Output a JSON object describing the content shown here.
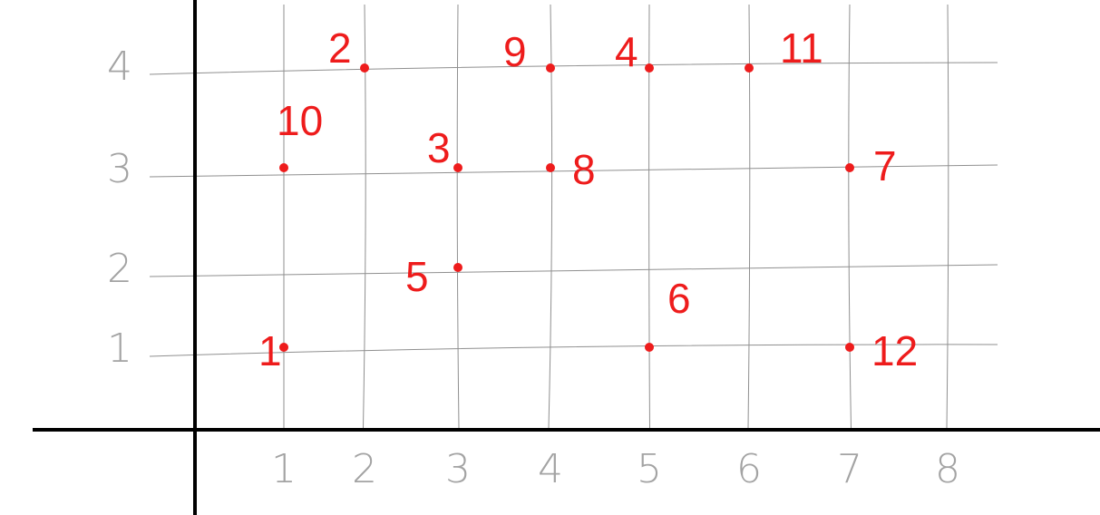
{
  "chart_data": {
    "type": "scatter",
    "x_ticks": [
      "1",
      "2",
      "3",
      "4",
      "5",
      "6",
      "7",
      "8"
    ],
    "y_ticks": [
      "1",
      "2",
      "3",
      "4"
    ],
    "xlim": [
      0,
      8
    ],
    "ylim": [
      0,
      4
    ],
    "grid": true,
    "points": [
      {
        "label": "1",
        "x": 1,
        "y": 1
      },
      {
        "label": "2",
        "x": 2,
        "y": 4
      },
      {
        "label": "3",
        "x": 3,
        "y": 3
      },
      {
        "label": "4",
        "x": 5,
        "y": 4
      },
      {
        "label": "5",
        "x": 3,
        "y": 2
      },
      {
        "label": "6",
        "x": 5,
        "y": 1
      },
      {
        "label": "7",
        "x": 7,
        "y": 3
      },
      {
        "label": "8",
        "x": 4,
        "y": 3
      },
      {
        "label": "9",
        "x": 4,
        "y": 4
      },
      {
        "label": "10",
        "x": 1,
        "y": 3
      },
      {
        "label": "11",
        "x": 6,
        "y": 4
      },
      {
        "label": "12",
        "x": 7,
        "y": 1
      }
    ]
  },
  "colors": {
    "points": "#ee1c1c",
    "grid": "#8f8f8f",
    "axes": "#000000",
    "ticks": "#a3a3a3"
  }
}
